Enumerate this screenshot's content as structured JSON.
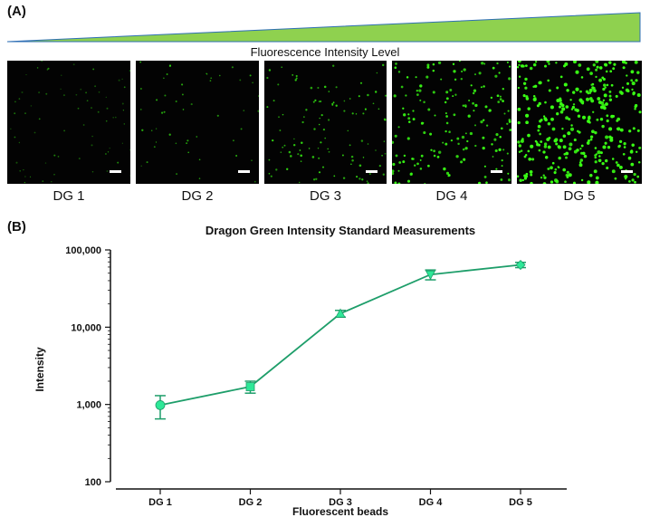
{
  "panel_a": {
    "label": "(A)",
    "wedge_caption": "Fluorescence Intensity Level",
    "wedge_color": "#8fd14f",
    "images": [
      {
        "label": "DG 1",
        "density": 1
      },
      {
        "label": "DG 2",
        "density": 2
      },
      {
        "label": "DG 3",
        "density": 3
      },
      {
        "label": "DG 4",
        "density": 4
      },
      {
        "label": "DG 5",
        "density": 5
      }
    ],
    "bead_color": "#39ff14"
  },
  "panel_b": {
    "label": "(B)"
  },
  "chart_data": {
    "type": "line",
    "title": "Dragon Green Intensity Standard Measurements",
    "xlabel": "Fluorescent beads",
    "ylabel": "Intensity",
    "yscale": "log",
    "ylim": [
      100,
      100000
    ],
    "yticks": [
      {
        "value": 100,
        "label": "100"
      },
      {
        "value": 1000,
        "label": "1,000"
      },
      {
        "value": 10000,
        "label": "10,000"
      },
      {
        "value": 100000,
        "label": "100,000"
      }
    ],
    "categories": [
      "DG 1",
      "DG 2",
      "DG 3",
      "DG 4",
      "DG 5"
    ],
    "series": [
      {
        "values": [
          980,
          1700,
          15000,
          48000,
          64000
        ],
        "err_low": [
          650,
          1400,
          13500,
          41000,
          59000
        ],
        "err_high": [
          1300,
          2000,
          16500,
          55000,
          69000
        ],
        "markers": [
          "circle",
          "square",
          "triangle-up",
          "triangle-down",
          "diamond"
        ],
        "line_color": "#1e9e6a",
        "marker_color": "#2ee898"
      }
    ]
  }
}
